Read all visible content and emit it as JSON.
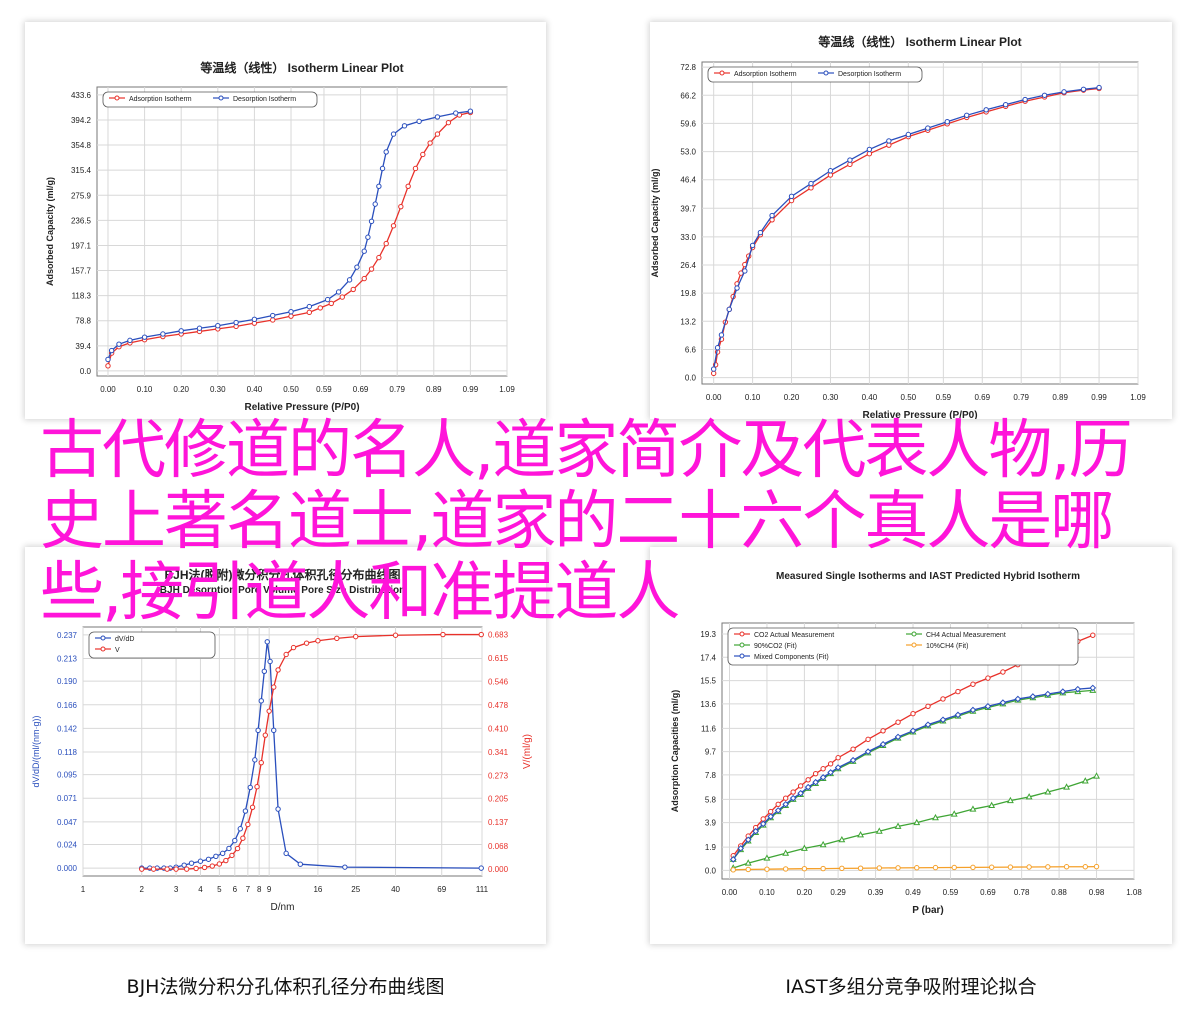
{
  "overlay_title": "古代修道的名人,道家简介及代表人物,历史上著名道士,道家的二十六个真人是哪些,接引道人和准提道人",
  "captions": {
    "bjh": "BJH法微分积分孔体积孔径分布曲线图",
    "iast": "IAST多组分竞争吸附理论拟合"
  },
  "colors": {
    "red": "#e8312a",
    "blue": "#2a4fbd",
    "green": "#3fa535",
    "orange": "#f5a02a",
    "grid": "#d8d8d8"
  },
  "chart_data": [
    {
      "id": "iso1",
      "type": "line",
      "title": "等温线（线性） Isotherm Linear Plot",
      "xlabel": "Relative Pressure (P/P0)",
      "ylabel": "Adsorbed Capacity (ml/g)",
      "xlim": [
        -0.03,
        1.09
      ],
      "ylim": [
        -8,
        446
      ],
      "xticks": [
        0.0,
        0.1,
        0.2,
        0.3,
        0.4,
        0.5,
        0.59,
        0.69,
        0.79,
        0.89,
        0.99,
        1.09
      ],
      "yticks": [
        0.0,
        39.4,
        78.8,
        118.3,
        157.7,
        197.1,
        236.5,
        275.9,
        315.4,
        354.8,
        394.2,
        433.6
      ],
      "grid": true,
      "legend_position": "top-left",
      "series": [
        {
          "name": "Adsorption Isotherm",
          "color": "red",
          "x": [
            0.0,
            0.01,
            0.03,
            0.06,
            0.1,
            0.15,
            0.2,
            0.25,
            0.3,
            0.35,
            0.4,
            0.45,
            0.5,
            0.55,
            0.58,
            0.61,
            0.64,
            0.67,
            0.7,
            0.72,
            0.74,
            0.76,
            0.78,
            0.8,
            0.82,
            0.84,
            0.86,
            0.88,
            0.9,
            0.93,
            0.96,
            0.99
          ],
          "y": [
            8,
            28,
            38,
            44,
            49,
            54,
            58,
            62,
            66,
            70,
            75,
            80,
            86,
            92,
            99,
            106,
            116,
            128,
            145,
            160,
            178,
            200,
            228,
            258,
            290,
            318,
            340,
            358,
            372,
            390,
            402,
            406
          ]
        },
        {
          "name": "Desorption Isotherm",
          "color": "blue",
          "x": [
            0.0,
            0.01,
            0.03,
            0.06,
            0.1,
            0.15,
            0.2,
            0.25,
            0.3,
            0.35,
            0.4,
            0.45,
            0.5,
            0.55,
            0.6,
            0.63,
            0.66,
            0.68,
            0.7,
            0.71,
            0.72,
            0.73,
            0.74,
            0.75,
            0.76,
            0.78,
            0.81,
            0.85,
            0.9,
            0.95,
            0.99
          ],
          "y": [
            18,
            32,
            42,
            48,
            53,
            58,
            63,
            67,
            71,
            76,
            81,
            87,
            93,
            101,
            112,
            124,
            143,
            163,
            188,
            210,
            235,
            262,
            290,
            318,
            344,
            372,
            385,
            392,
            399,
            405,
            408
          ]
        }
      ]
    },
    {
      "id": "iso2",
      "type": "line",
      "title": "等温线（线性） Isotherm Linear Plot",
      "xlabel": "Relative Pressure (P/P0)",
      "ylabel": "Adsorbed Capacity (ml/g)",
      "xlim": [
        -0.03,
        1.09
      ],
      "ylim": [
        -1.5,
        74
      ],
      "xticks": [
        0.0,
        0.1,
        0.2,
        0.3,
        0.4,
        0.5,
        0.59,
        0.69,
        0.79,
        0.89,
        0.99,
        1.09
      ],
      "yticks": [
        0.0,
        6.6,
        13.2,
        19.8,
        26.4,
        33.0,
        39.7,
        46.4,
        53.0,
        59.6,
        66.2,
        72.8
      ],
      "grid": true,
      "legend_position": "top-left",
      "series": [
        {
          "name": "Adsorption Isotherm",
          "color": "red",
          "x": [
            0.0,
            0.005,
            0.01,
            0.02,
            0.03,
            0.04,
            0.05,
            0.06,
            0.07,
            0.08,
            0.09,
            0.1,
            0.12,
            0.15,
            0.2,
            0.25,
            0.3,
            0.35,
            0.4,
            0.45,
            0.5,
            0.55,
            0.6,
            0.65,
            0.7,
            0.75,
            0.8,
            0.85,
            0.9,
            0.95,
            0.99
          ],
          "y": [
            1,
            3,
            6,
            9,
            13,
            16,
            19,
            22,
            24.5,
            26.5,
            28.5,
            30.5,
            33.5,
            37,
            41.5,
            44.5,
            47.5,
            50,
            52.5,
            54.5,
            56.5,
            58,
            59.5,
            61,
            62.3,
            63.6,
            64.8,
            65.8,
            66.8,
            67.4,
            67.8
          ]
        },
        {
          "name": "Desorption Isotherm",
          "color": "blue",
          "x": [
            0.0,
            0.01,
            0.02,
            0.04,
            0.06,
            0.08,
            0.1,
            0.12,
            0.15,
            0.2,
            0.25,
            0.3,
            0.35,
            0.4,
            0.45,
            0.5,
            0.55,
            0.6,
            0.65,
            0.7,
            0.75,
            0.8,
            0.85,
            0.9,
            0.95,
            0.99
          ],
          "y": [
            2,
            7,
            10,
            16,
            21,
            25,
            31,
            34,
            38,
            42.5,
            45.5,
            48.5,
            51,
            53.5,
            55.5,
            57,
            58.5,
            60,
            61.5,
            62.8,
            64,
            65.2,
            66.2,
            67,
            67.6,
            68
          ]
        }
      ]
    },
    {
      "id": "bjh",
      "type": "line",
      "title": "BJH法(脱附)微分积分孔体积孔径分布曲线图",
      "subtitle": "BJH Desorption Pore Volume Pore Size Distribution",
      "xlabel": "D/nm",
      "ylabel": "dV/dD/(ml/(nm·g))",
      "y2label": "V/(ml/g)",
      "xscale": "log",
      "xlim": [
        1,
        111
      ],
      "ylim": [
        -0.008,
        0.245
      ],
      "y2lim": [
        -0.02,
        0.705
      ],
      "xticks": [
        1,
        2,
        3,
        4,
        5,
        6,
        7,
        8,
        9,
        16,
        25,
        40,
        69,
        111
      ],
      "yticks": [
        0.0,
        0.024,
        0.047,
        0.071,
        0.095,
        0.118,
        0.142,
        0.166,
        0.19,
        0.213,
        0.237
      ],
      "y2ticks": [
        0.0,
        0.068,
        0.137,
        0.205,
        0.273,
        0.341,
        0.41,
        0.478,
        0.546,
        0.615,
        0.683
      ],
      "grid": true,
      "legend_position": "top-left",
      "series": [
        {
          "name": "dV/dD",
          "color": "blue",
          "axis": "left",
          "x": [
            2.0,
            2.2,
            2.4,
            2.6,
            2.8,
            3.0,
            3.3,
            3.6,
            4.0,
            4.4,
            4.8,
            5.2,
            5.6,
            6.0,
            6.4,
            6.8,
            7.2,
            7.6,
            7.9,
            8.2,
            8.5,
            8.8,
            9.1,
            9.5,
            10,
            11,
            13,
            22,
            110
          ],
          "y": [
            0,
            0,
            0,
            0,
            0,
            0.001,
            0.003,
            0.005,
            0.007,
            0.009,
            0.012,
            0.015,
            0.02,
            0.028,
            0.04,
            0.058,
            0.082,
            0.11,
            0.14,
            0.17,
            0.2,
            0.23,
            0.21,
            0.14,
            0.06,
            0.015,
            0.004,
            0.001,
            0
          ]
        },
        {
          "name": "V",
          "color": "red",
          "axis": "right",
          "x": [
            2.0,
            2.3,
            2.7,
            3.0,
            3.4,
            3.8,
            4.2,
            4.6,
            5.0,
            5.4,
            5.8,
            6.2,
            6.6,
            7.0,
            7.4,
            7.8,
            8.2,
            8.6,
            9.0,
            9.5,
            10,
            11,
            12,
            14,
            16,
            20,
            25,
            40,
            70,
            110
          ],
          "y": [
            0,
            0,
            0,
            0,
            0,
            0.002,
            0.005,
            0.009,
            0.015,
            0.025,
            0.04,
            0.06,
            0.09,
            0.13,
            0.18,
            0.24,
            0.31,
            0.39,
            0.46,
            0.53,
            0.58,
            0.625,
            0.645,
            0.658,
            0.665,
            0.672,
            0.677,
            0.681,
            0.683,
            0.683
          ]
        }
      ]
    },
    {
      "id": "iast",
      "type": "line",
      "title": "Measured Single Isotherms and IAST Predicted Hybrid Isotherm",
      "xlabel": "P (bar)",
      "ylabel": "Adsorption Capacities (ml/g)",
      "xlim": [
        -0.02,
        1.08
      ],
      "ylim": [
        -0.7,
        20.2
      ],
      "xticks": [
        0.0,
        0.1,
        0.2,
        0.29,
        0.39,
        0.49,
        0.59,
        0.69,
        0.78,
        0.88,
        0.98,
        1.08
      ],
      "yticks": [
        0.0,
        1.9,
        3.9,
        5.8,
        7.8,
        9.7,
        11.6,
        13.6,
        15.5,
        17.4,
        19.3
      ],
      "grid": true,
      "legend_position": "top-left",
      "series": [
        {
          "name": "CO2 Actual Measurement",
          "color": "red",
          "x": [
            0.01,
            0.03,
            0.05,
            0.07,
            0.09,
            0.11,
            0.13,
            0.15,
            0.17,
            0.19,
            0.21,
            0.23,
            0.25,
            0.27,
            0.29,
            0.33,
            0.37,
            0.41,
            0.45,
            0.49,
            0.53,
            0.57,
            0.61,
            0.65,
            0.69,
            0.73,
            0.77,
            0.81,
            0.85,
            0.89,
            0.93,
            0.97
          ],
          "y": [
            1.2,
            2.0,
            2.8,
            3.5,
            4.2,
            4.8,
            5.4,
            5.9,
            6.4,
            6.9,
            7.4,
            7.9,
            8.3,
            8.7,
            9.2,
            9.9,
            10.7,
            11.4,
            12.1,
            12.8,
            13.4,
            14.0,
            14.6,
            15.2,
            15.7,
            16.2,
            16.8,
            17.3,
            17.8,
            18.2,
            18.7,
            19.2
          ]
        },
        {
          "name": "CH4 Actual Measurement",
          "color": "green",
          "x": [
            0.01,
            0.05,
            0.1,
            0.15,
            0.2,
            0.25,
            0.3,
            0.35,
            0.4,
            0.45,
            0.5,
            0.55,
            0.6,
            0.65,
            0.7,
            0.75,
            0.8,
            0.85,
            0.9,
            0.95,
            0.98
          ],
          "y": [
            0.2,
            0.6,
            1.0,
            1.4,
            1.8,
            2.1,
            2.5,
            2.9,
            3.2,
            3.6,
            3.9,
            4.3,
            4.6,
            5.0,
            5.3,
            5.7,
            6.0,
            6.4,
            6.8,
            7.3,
            7.7
          ]
        },
        {
          "name": "90%CO2 (Fit)",
          "color": "green",
          "x": [
            0.01,
            0.03,
            0.05,
            0.07,
            0.09,
            0.11,
            0.13,
            0.15,
            0.17,
            0.19,
            0.21,
            0.23,
            0.25,
            0.27,
            0.29,
            0.33,
            0.37,
            0.41,
            0.45,
            0.49,
            0.53,
            0.57,
            0.61,
            0.65,
            0.69,
            0.73,
            0.77,
            0.81,
            0.85,
            0.89,
            0.93,
            0.97
          ],
          "y": [
            0.9,
            1.7,
            2.4,
            3.1,
            3.7,
            4.3,
            4.8,
            5.3,
            5.8,
            6.2,
            6.7,
            7.1,
            7.5,
            7.9,
            8.3,
            8.9,
            9.6,
            10.2,
            10.8,
            11.3,
            11.8,
            12.2,
            12.6,
            13.0,
            13.3,
            13.6,
            13.9,
            14.1,
            14.3,
            14.5,
            14.6,
            14.7
          ]
        },
        {
          "name": "10%CH4 (Fit)",
          "color": "orange",
          "x": [
            0.01,
            0.05,
            0.1,
            0.15,
            0.2,
            0.25,
            0.3,
            0.35,
            0.4,
            0.45,
            0.5,
            0.55,
            0.6,
            0.65,
            0.7,
            0.75,
            0.8,
            0.85,
            0.9,
            0.95,
            0.98
          ],
          "y": [
            0.05,
            0.08,
            0.1,
            0.12,
            0.14,
            0.15,
            0.17,
            0.18,
            0.2,
            0.21,
            0.22,
            0.23,
            0.24,
            0.25,
            0.26,
            0.27,
            0.28,
            0.29,
            0.3,
            0.3,
            0.31
          ]
        },
        {
          "name": "Mixed Components (Fit)",
          "color": "blue",
          "x": [
            0.01,
            0.03,
            0.05,
            0.07,
            0.09,
            0.11,
            0.13,
            0.15,
            0.17,
            0.19,
            0.21,
            0.23,
            0.25,
            0.27,
            0.29,
            0.33,
            0.37,
            0.41,
            0.45,
            0.49,
            0.53,
            0.57,
            0.61,
            0.65,
            0.69,
            0.73,
            0.77,
            0.81,
            0.85,
            0.89,
            0.93,
            0.97
          ],
          "y": [
            0.9,
            1.8,
            2.5,
            3.2,
            3.8,
            4.4,
            4.9,
            5.4,
            5.9,
            6.3,
            6.8,
            7.2,
            7.6,
            8.0,
            8.4,
            9.0,
            9.7,
            10.3,
            10.9,
            11.4,
            11.9,
            12.3,
            12.7,
            13.1,
            13.4,
            13.7,
            14.0,
            14.2,
            14.4,
            14.6,
            14.8,
            14.9
          ]
        }
      ]
    }
  ]
}
